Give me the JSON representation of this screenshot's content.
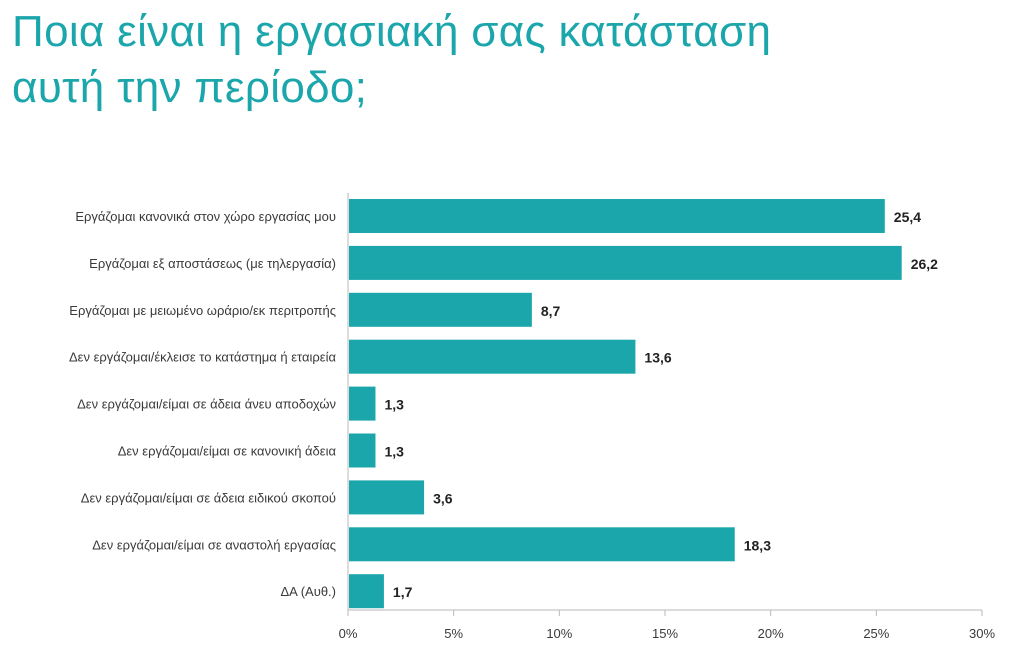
{
  "page": {
    "title_line1": "Ποια είναι η εργασιακή σας κατάσταση",
    "title_line2": "αυτή την περίοδο;"
  },
  "colors": {
    "title": "#1ba6ac",
    "bar": "#1ba6ac",
    "axis": "#b8b8b8",
    "label_text": "#3a3a3a",
    "value_text": "#222222"
  },
  "chart_data": {
    "type": "bar",
    "orientation": "horizontal",
    "title": "Ποια είναι η εργασιακή σας κατάσταση αυτή την περίοδο;",
    "categories": [
      "Εργάζομαι κανονικά στον χώρο εργασίας μου",
      "Εργάζομαι εξ αποστάσεως (με τηλεργασία)",
      "Εργάζομαι με μειωμένο ωράριο/εκ περιτροπής",
      "Δεν εργάζομαι/έκλεισε το κατάστημα ή εταιρεία",
      "Δεν εργάζομαι/είμαι σε άδεια άνευ αποδοχών",
      "Δεν εργάζομαι/είμαι σε κανονική άδεια",
      "Δεν εργάζομαι/είμαι σε άδεια ειδικού σκοπού",
      "Δεν εργάζομαι/είμαι σε αναστολή εργασίας",
      "ΔΑ (Αυθ.)"
    ],
    "values": [
      25.4,
      26.2,
      8.7,
      13.6,
      1.3,
      1.3,
      3.6,
      18.3,
      1.7
    ],
    "value_labels": [
      "25,4",
      "26,2",
      "8,7",
      "13,6",
      "1,3",
      "1,3",
      "3,6",
      "18,3",
      "1,7"
    ],
    "xlim": [
      0,
      30
    ],
    "xticks": [
      0,
      5,
      10,
      15,
      20,
      25,
      30
    ],
    "xtick_labels": [
      "0%",
      "5%",
      "10%",
      "15%",
      "20%",
      "25%",
      "30%"
    ],
    "grid": false,
    "legend": "none"
  }
}
